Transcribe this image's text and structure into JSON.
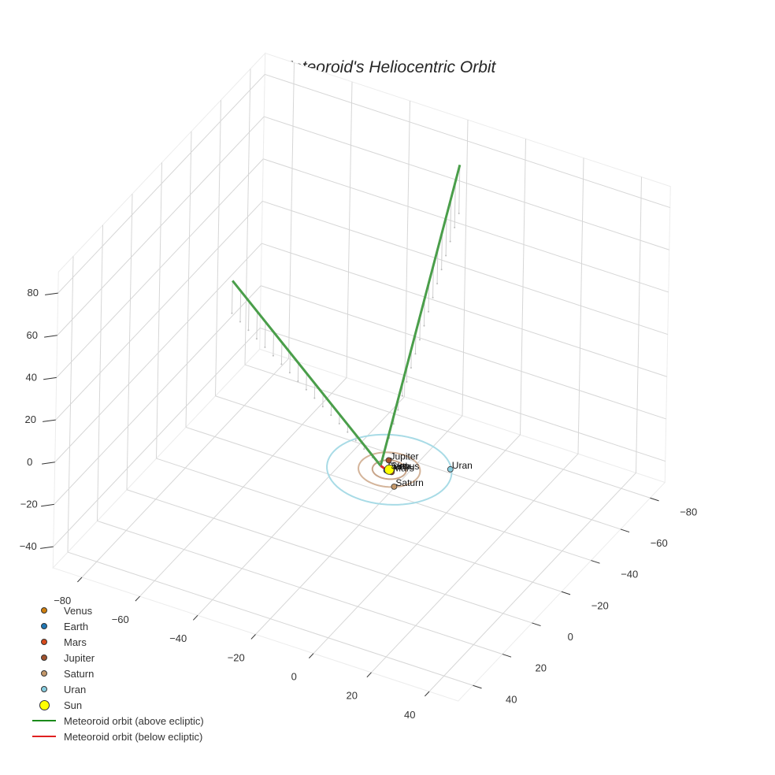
{
  "chart_data": {
    "type": "scatter3d",
    "title": "Meteoroid's Heliocentric Orbit",
    "xlabel": "",
    "ylabel": "",
    "zlabel": "",
    "x_ticks": [
      -80,
      -60,
      -40,
      -20,
      0,
      20,
      40
    ],
    "y_ticks": [
      -80,
      -60,
      -40,
      -20,
      0,
      20,
      40
    ],
    "z_ticks": [
      -40,
      -20,
      0,
      20,
      40,
      60,
      80
    ],
    "xlim": [
      -90,
      50
    ],
    "ylim": [
      -90,
      50
    ],
    "zlim": [
      -50,
      90
    ],
    "grid": true,
    "legend_position": "lower left",
    "planets": [
      {
        "name": "Venus",
        "color": "#d07f0e",
        "x": 0.7,
        "y": -0.1,
        "z": 0
      },
      {
        "name": "Earth",
        "color": "#1f77b4",
        "x": -0.6,
        "y": 0.8,
        "z": 0
      },
      {
        "name": "Mars",
        "color": "#d84a1b",
        "x": 1.2,
        "y": 0.8,
        "z": 0
      },
      {
        "name": "Jupiter",
        "color": "#a0522d",
        "x": -2.5,
        "y": -4.5,
        "z": 0
      },
      {
        "name": "Saturn",
        "color": "#c4986a",
        "x": 5.5,
        "y": 7.5,
        "z": 0
      },
      {
        "name": "Uran",
        "color": "#87cde0",
        "x": 16,
        "y": -10,
        "z": 0
      },
      {
        "name": "Sun",
        "color": "#ffff00",
        "x": 0,
        "y": 0,
        "z": 0
      }
    ],
    "orbits": [
      {
        "name": "Mars orbit",
        "radius": 1.5,
        "color": "#e8a09a"
      },
      {
        "name": "Jupiter orbit",
        "radius": 5.2,
        "color": "#c8a58a"
      },
      {
        "name": "Saturn orbit",
        "radius": 9.5,
        "color": "#d4b49a"
      },
      {
        "name": "Uran orbit",
        "radius": 19.2,
        "color": "#a8dbe6"
      }
    ],
    "series": [
      {
        "name": "Meteoroid orbit (above ecliptic)",
        "color": "#4a9e4a",
        "points": [
          [
            -60,
            -10,
            55
          ],
          [
            -3,
            0,
            0.5
          ],
          [
            -15,
            -75,
            82
          ]
        ]
      },
      {
        "name": "Meteoroid orbit (below ecliptic)",
        "color": "#e03030",
        "points": [
          [
            -3,
            0,
            0.5
          ],
          [
            0,
            0,
            -1
          ]
        ]
      }
    ]
  },
  "legend": {
    "items": [
      {
        "label": "Venus",
        "type": "dot",
        "color": "#d07f0e"
      },
      {
        "label": "Earth",
        "type": "dot",
        "color": "#1f77b4"
      },
      {
        "label": "Mars",
        "type": "dot",
        "color": "#d84a1b"
      },
      {
        "label": "Jupiter",
        "type": "dot",
        "color": "#a0522d"
      },
      {
        "label": "Saturn",
        "type": "dot",
        "color": "#c4986a"
      },
      {
        "label": "Uran",
        "type": "dot",
        "color": "#87cde0"
      },
      {
        "label": "Sun",
        "type": "bigdot",
        "color": "#ffff00"
      },
      {
        "label": "Meteoroid orbit (above ecliptic)",
        "type": "line",
        "color": "#1a8a1a"
      },
      {
        "label": "Meteoroid orbit (below ecliptic)",
        "type": "line",
        "color": "#e02020"
      }
    ]
  }
}
